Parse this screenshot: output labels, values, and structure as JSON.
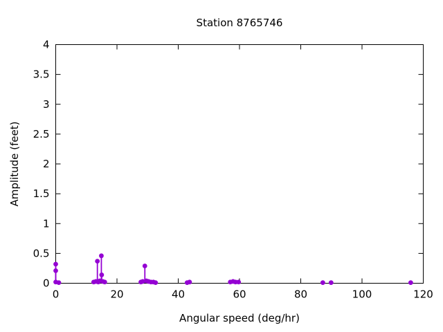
{
  "chart_data": {
    "type": "scatter",
    "style": "impulses+points",
    "title": "Station 8765746",
    "xlabel": "Angular speed (deg/hr)",
    "ylabel": "Amplitude (feet)",
    "xlim": [
      0,
      120
    ],
    "ylim": [
      0,
      4
    ],
    "xticks": [
      0,
      20,
      40,
      60,
      80,
      100,
      120
    ],
    "yticks": [
      0,
      0.5,
      1,
      1.5,
      2,
      2.5,
      3,
      3.5,
      4
    ],
    "grid": false,
    "legend": "none",
    "colors": {
      "points": "#9400d3",
      "axis": "#000000",
      "text": "#000000",
      "background": "#ffffff"
    },
    "points": [
      {
        "x": 0,
        "y": 0.32
      },
      {
        "x": 0,
        "y": 0.21
      },
      {
        "x": 0,
        "y": 0.02
      },
      {
        "x": 1,
        "y": 0.01
      },
      {
        "x": 12.4,
        "y": 0.02
      },
      {
        "x": 13.1,
        "y": 0.03
      },
      {
        "x": 13.6,
        "y": 0.37
      },
      {
        "x": 13.9,
        "y": 0.02
      },
      {
        "x": 14.4,
        "y": 0.04
      },
      {
        "x": 14.9,
        "y": 0.46
      },
      {
        "x": 15.0,
        "y": 0.14
      },
      {
        "x": 15.4,
        "y": 0.03
      },
      {
        "x": 16.0,
        "y": 0.02
      },
      {
        "x": 27.8,
        "y": 0.02
      },
      {
        "x": 28.4,
        "y": 0.03
      },
      {
        "x": 29.1,
        "y": 0.29
      },
      {
        "x": 29.6,
        "y": 0.04
      },
      {
        "x": 30.3,
        "y": 0.03
      },
      {
        "x": 31.1,
        "y": 0.02
      },
      {
        "x": 31.9,
        "y": 0.02
      },
      {
        "x": 32.6,
        "y": 0.01
      },
      {
        "x": 42.9,
        "y": 0.01
      },
      {
        "x": 43.7,
        "y": 0.02
      },
      {
        "x": 57.0,
        "y": 0.02
      },
      {
        "x": 57.9,
        "y": 0.03
      },
      {
        "x": 58.7,
        "y": 0.02
      },
      {
        "x": 59.7,
        "y": 0.02
      },
      {
        "x": 87.2,
        "y": 0.01
      },
      {
        "x": 89.9,
        "y": 0.01
      },
      {
        "x": 115.9,
        "y": 0.01
      }
    ]
  }
}
